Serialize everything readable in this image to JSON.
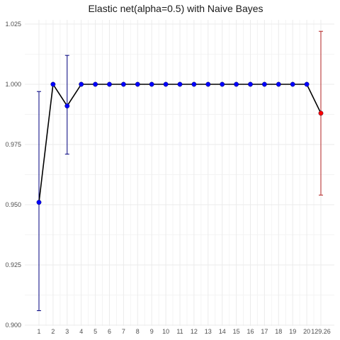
{
  "chart_data": {
    "type": "line",
    "title": "Elastic net(alpha=0.5) with Naive Bayes",
    "xlabel": "",
    "ylabel": "",
    "x": [
      "1",
      "2",
      "3",
      "4",
      "5",
      "6",
      "7",
      "8",
      "9",
      "10",
      "11",
      "12",
      "13",
      "14",
      "15",
      "16",
      "17",
      "18",
      "19",
      "20",
      "129.26"
    ],
    "values": [
      0.951,
      1.0,
      0.991,
      1.0,
      1.0,
      1.0,
      1.0,
      1.0,
      1.0,
      1.0,
      1.0,
      1.0,
      1.0,
      1.0,
      1.0,
      1.0,
      1.0,
      1.0,
      1.0,
      1.0,
      0.988
    ],
    "error_lower": [
      0.906,
      null,
      0.971,
      null,
      null,
      null,
      null,
      null,
      null,
      null,
      null,
      null,
      null,
      null,
      null,
      null,
      null,
      null,
      null,
      null,
      0.954
    ],
    "error_upper": [
      0.997,
      null,
      1.012,
      null,
      null,
      null,
      null,
      null,
      null,
      null,
      null,
      null,
      null,
      null,
      null,
      null,
      null,
      null,
      null,
      null,
      1.022
    ],
    "point_colors": [
      "#0000ff",
      "#0000ff",
      "#0000ff",
      "#0000ff",
      "#0000ff",
      "#0000ff",
      "#0000ff",
      "#0000ff",
      "#0000ff",
      "#0000ff",
      "#0000ff",
      "#0000ff",
      "#0000ff",
      "#0000ff",
      "#0000ff",
      "#0000ff",
      "#0000ff",
      "#0000ff",
      "#0000ff",
      "#0000ff",
      "#ff0000"
    ],
    "errorbar_colors": [
      "#00007f",
      "#00007f",
      "#00007f",
      "#00007f",
      "#00007f",
      "#00007f",
      "#00007f",
      "#00007f",
      "#00007f",
      "#00007f",
      "#00007f",
      "#00007f",
      "#00007f",
      "#00007f",
      "#00007f",
      "#00007f",
      "#00007f",
      "#00007f",
      "#00007f",
      "#00007f",
      "#b22222"
    ],
    "line_color": "#000000",
    "yticks": [
      0.9,
      0.925,
      0.95,
      0.975,
      1.0,
      1.025
    ],
    "ytick_labels": [
      "0.900",
      "0.925",
      "0.950",
      "0.975",
      "1.000",
      "1.025"
    ],
    "ylim": [
      0.9,
      1.03
    ],
    "grid": true,
    "legend": "none"
  }
}
